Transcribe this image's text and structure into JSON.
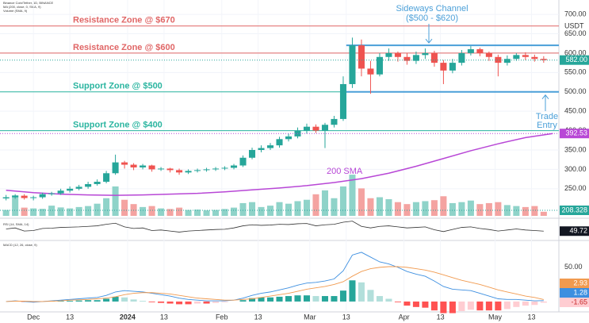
{
  "chart_data": {
    "type": "candlestick",
    "legend_lines": [
      "Binance Coin/Tether, 1D, BINANCE",
      "MA (200, close, 0, SMA, 9)",
      "Volume (SMA, 9)"
    ],
    "x": [
      0,
      3,
      6,
      9,
      12,
      15,
      18,
      21,
      24,
      27,
      30,
      33,
      36,
      39,
      42,
      45,
      48,
      51,
      54,
      57,
      60,
      63,
      66,
      69,
      72,
      75,
      78,
      81,
      84,
      87,
      90,
      93,
      96,
      99,
      102,
      105,
      108,
      111,
      114,
      117,
      120,
      123,
      126,
      129,
      132,
      135,
      138,
      141,
      144,
      147,
      150,
      153,
      156,
      159,
      162,
      165,
      168,
      171,
      174,
      177
    ],
    "xlim": [
      -2,
      182
    ],
    "xticks": [
      {
        "value": 9,
        "label": "Dec"
      },
      {
        "value": 21,
        "label": "13"
      },
      {
        "value": 40,
        "label": "2024"
      },
      {
        "value": 52,
        "label": "13"
      },
      {
        "value": 71,
        "label": "Feb"
      },
      {
        "value": 83,
        "label": "13"
      },
      {
        "value": 100,
        "label": "Mar"
      },
      {
        "value": 112,
        "label": "13"
      },
      {
        "value": 131,
        "label": "Apr"
      },
      {
        "value": 143,
        "label": "13"
      },
      {
        "value": 161,
        "label": "May"
      },
      {
        "value": 173,
        "label": "13"
      }
    ],
    "open": [
      225,
      228,
      232,
      226,
      228,
      236,
      238,
      245,
      250,
      255,
      262,
      268,
      290,
      318,
      312,
      305,
      310,
      300,
      302,
      298,
      292,
      296,
      298,
      300,
      302,
      304,
      310,
      330,
      350,
      355,
      362,
      378,
      385,
      400,
      410,
      400,
      415,
      430,
      520,
      620,
      560,
      545,
      590,
      600,
      590,
      580,
      595,
      600,
      575,
      555,
      575,
      600,
      610,
      600,
      590,
      575,
      585,
      595,
      590,
      585
    ],
    "high": [
      234,
      236,
      236,
      232,
      240,
      242,
      250,
      256,
      260,
      268,
      274,
      296,
      338,
      322,
      316,
      314,
      312,
      306,
      304,
      302,
      300,
      302,
      304,
      306,
      308,
      314,
      336,
      356,
      362,
      368,
      384,
      392,
      408,
      418,
      416,
      420,
      438,
      540,
      640,
      635,
      580,
      600,
      612,
      604,
      600,
      604,
      612,
      606,
      582,
      585,
      608,
      618,
      614,
      604,
      596,
      594,
      600,
      602,
      596,
      592
    ],
    "low": [
      220,
      224,
      222,
      220,
      224,
      232,
      234,
      240,
      246,
      250,
      258,
      264,
      286,
      302,
      298,
      300,
      294,
      296,
      292,
      286,
      288,
      292,
      294,
      296,
      298,
      300,
      306,
      326,
      344,
      350,
      356,
      372,
      380,
      392,
      394,
      355,
      408,
      425,
      510,
      540,
      495,
      540,
      580,
      578,
      570,
      572,
      585,
      565,
      520,
      548,
      568,
      594,
      592,
      580,
      540,
      568,
      580,
      582,
      578,
      575
    ],
    "close": [
      228,
      232,
      226,
      228,
      236,
      238,
      245,
      250,
      255,
      262,
      268,
      290,
      318,
      312,
      305,
      310,
      300,
      302,
      298,
      292,
      296,
      298,
      300,
      302,
      304,
      310,
      330,
      350,
      355,
      362,
      378,
      385,
      400,
      410,
      400,
      415,
      430,
      520,
      620,
      560,
      545,
      590,
      600,
      590,
      580,
      595,
      600,
      575,
      555,
      575,
      600,
      610,
      600,
      590,
      575,
      585,
      595,
      590,
      585,
      582
    ],
    "up_color": "#26a69a",
    "down_color": "#ef5350",
    "ylim": [
      180,
      737
    ],
    "yticks": [
      {
        "value": 250,
        "label": "250.00"
      },
      {
        "value": 300,
        "label": "300.00"
      },
      {
        "value": 350,
        "label": "350.00"
      },
      {
        "value": 400,
        "label": "400.00"
      },
      {
        "value": 450,
        "label": "450.00"
      },
      {
        "value": 500,
        "label": "500.00"
      },
      {
        "value": 550,
        "label": "550.00"
      },
      {
        "value": 600,
        "label": "600.00"
      },
      {
        "value": 650,
        "label": "650.00"
      },
      {
        "value": 700,
        "label": "700.00"
      }
    ],
    "y_unit": "USDT",
    "price_marker": {
      "value": 582,
      "label": "582.00"
    },
    "sma": {
      "name": "200 SMA",
      "color": "#b847d6",
      "x": [
        0,
        9,
        18,
        27,
        36,
        45,
        54,
        63,
        72,
        81,
        90,
        99,
        108,
        117,
        126,
        135,
        144,
        153,
        162,
        171,
        180
      ],
      "values": [
        246,
        240,
        236,
        234,
        233,
        234,
        236,
        238,
        242,
        247,
        252,
        258,
        266,
        276,
        290,
        308,
        328,
        348,
        366,
        382,
        392.53
      ]
    },
    "levels": [
      {
        "label": "Resistance Zone @ $670",
        "value": 670,
        "color": "#e06666"
      },
      {
        "label": "Resistance Zone @ $600",
        "value": 600,
        "color": "#e06666"
      },
      {
        "label": "Support Zone @ $500",
        "value": 500,
        "color": "#2bb5a0"
      },
      {
        "label": "Support Zone @ $400",
        "value": 400,
        "color": "#2bb5a0"
      }
    ],
    "channel": {
      "title": "Sideways Channel",
      "subtitle": "($500 - $620)",
      "values": [
        620,
        500
      ],
      "start": 112,
      "color": "#4a9fd8"
    },
    "trade_entry": [
      "Trade",
      "Entry"
    ],
    "volume": {
      "values": [
        300,
        1050,
        420,
        380,
        360,
        520,
        430,
        380,
        450,
        500,
        620,
        900,
        1500,
        820,
        600,
        450,
        500,
        380,
        350,
        420,
        300,
        320,
        280,
        300,
        350,
        420,
        650,
        700,
        450,
        520,
        700,
        620,
        750,
        820,
        1100,
        1300,
        900,
        1500,
        2100,
        1400,
        900,
        950,
        850,
        700,
        600,
        700,
        750,
        800,
        1000,
        650,
        700,
        780,
        600,
        650,
        700,
        550,
        500,
        450,
        500,
        208.328
      ],
      "ylim": [
        0,
        11000
      ],
      "up_color": "#8fd3c9",
      "down_color": "#f4a3a1"
    },
    "rsi": {
      "label": "RSI (14, SMA, 14)",
      "values": [
        58,
        62,
        50,
        52,
        60,
        61,
        64,
        65,
        66,
        68,
        70,
        76,
        80,
        66,
        60,
        62,
        52,
        54,
        50,
        46,
        50,
        52,
        54,
        56,
        57,
        62,
        70,
        74,
        72,
        73,
        76,
        75,
        78,
        79,
        70,
        74,
        76,
        84,
        88,
        68,
        62,
        68,
        70,
        66,
        62,
        64,
        66,
        55,
        48,
        56,
        64,
        66,
        60,
        56,
        50,
        54,
        58,
        54,
        52,
        49.72
      ],
      "ylim": [
        20,
        90
      ],
      "color": "#333333"
    },
    "macd": {
      "label": "MACD (12, 26, close, 9)",
      "ylim": [
        -14,
        87
      ],
      "yticks": [
        {
          "value": 50,
          "label": "50.00"
        }
      ],
      "macd": {
        "values": [
          0,
          1,
          0,
          -1,
          0,
          1,
          2,
          3,
          4,
          5,
          6,
          9,
          14,
          16,
          15,
          14,
          12,
          10,
          8,
          5,
          3,
          2,
          1,
          1,
          1,
          2,
          5,
          9,
          12,
          14,
          17,
          20,
          24,
          27,
          28,
          30,
          33,
          45,
          68,
          72,
          65,
          58,
          55,
          50,
          44,
          40,
          37,
          30,
          22,
          18,
          17,
          16,
          12,
          8,
          4,
          3,
          3,
          2,
          1,
          1.28
        ],
        "color": "#3d8fe0"
      },
      "signal": {
        "values": [
          0,
          0.5,
          0.5,
          0,
          0,
          0.5,
          1,
          2,
          2.5,
          3,
          4,
          5,
          7,
          10,
          12,
          13,
          13,
          12,
          11,
          9,
          7,
          5,
          4,
          3,
          2,
          2,
          3,
          4,
          6,
          8,
          10,
          12,
          15,
          18,
          20,
          22,
          25,
          29,
          37,
          44,
          48,
          50,
          51,
          51,
          50,
          48,
          46,
          43,
          39,
          35,
          31,
          28,
          25,
          21,
          17,
          14,
          11,
          8,
          6,
          2.93
        ],
        "color": "#f19a4f"
      },
      "histogram": {
        "values": [
          0,
          0.5,
          -0.5,
          -1,
          0,
          0.5,
          1,
          1,
          1.5,
          2,
          2,
          4,
          7,
          6,
          3,
          1,
          -1,
          -2,
          -3,
          -4,
          -4,
          -3,
          -3,
          -2,
          -1,
          0,
          2,
          5,
          6,
          6,
          7,
          8,
          9,
          9,
          8,
          8,
          8,
          16,
          31,
          28,
          17,
          8,
          4,
          -1,
          -6,
          -8,
          -9,
          -13,
          -17,
          -17,
          -14,
          -12,
          -13,
          -13,
          -13,
          -11,
          -8,
          -6,
          -5,
          -1.65
        ]
      }
    }
  }
}
